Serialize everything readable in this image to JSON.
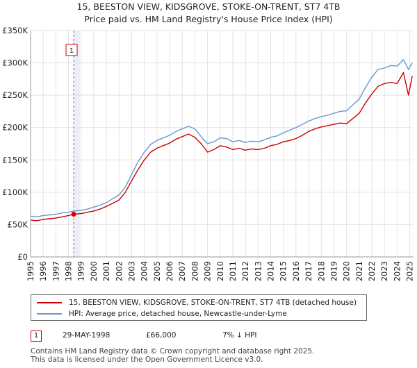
{
  "title_line1": "15, BEESTON VIEW, KIDSGROVE, STOKE-ON-TRENT, ST7 4TB",
  "title_line2": "Price paid vs. HM Land Registry's House Price Index (HPI)",
  "colors": {
    "property": "#cc0000",
    "hpi": "#6699cc",
    "highlight": "#dde4f2",
    "marker": "#cc0000"
  },
  "chart_data": {
    "type": "line",
    "title": "15, BEESTON VIEW, KIDSGROVE, STOKE-ON-TRENT, ST7 4TB",
    "subtitle": "Price paid vs. HM Land Registry's House Price Index (HPI)",
    "xlabel": "",
    "ylabel": "",
    "xlim": [
      1995,
      2025.3
    ],
    "ylim": [
      0,
      350000
    ],
    "yticks": [
      0,
      50000,
      100000,
      150000,
      200000,
      250000,
      300000,
      350000
    ],
    "ytick_labels": [
      "£0",
      "£50K",
      "£100K",
      "£150K",
      "£200K",
      "£250K",
      "£300K",
      "£350K"
    ],
    "xticks": [
      1995,
      1996,
      1997,
      1998,
      1999,
      2000,
      2001,
      2002,
      2003,
      2004,
      2005,
      2006,
      2007,
      2008,
      2009,
      2010,
      2011,
      2012,
      2013,
      2014,
      2015,
      2016,
      2017,
      2018,
      2019,
      2020,
      2021,
      2022,
      2023,
      2024,
      2025
    ],
    "xtick_labels": [
      "1995",
      "1996",
      "1997",
      "1998",
      "1999",
      "2000",
      "2001",
      "2002",
      "2003",
      "2004",
      "2005",
      "2006",
      "2007",
      "2008",
      "2009",
      "2010",
      "2011",
      "2012",
      "2013",
      "2014",
      "2015",
      "2016",
      "2017",
      "2018",
      "2019",
      "2020",
      "2021",
      "2022",
      "2023",
      "2024",
      "2025"
    ],
    "grid": true,
    "series": [
      {
        "name": "15, BEESTON VIEW, KIDSGROVE, STOKE-ON-TRENT, ST7 4TB (detached house)",
        "color": "#cc0000",
        "x": [
          1995.0,
          1995.5,
          1996.0,
          1996.5,
          1997.0,
          1997.5,
          1998.0,
          1998.41,
          1999.0,
          1999.5,
          2000.0,
          2000.5,
          2001.0,
          2001.5,
          2002.0,
          2002.5,
          2003.0,
          2003.5,
          2004.0,
          2004.5,
          2005.0,
          2005.5,
          2006.0,
          2006.5,
          2007.0,
          2007.5,
          2008.0,
          2008.5,
          2009.0,
          2009.5,
          2010.0,
          2010.5,
          2011.0,
          2011.5,
          2012.0,
          2012.5,
          2013.0,
          2013.5,
          2014.0,
          2014.5,
          2015.0,
          2015.5,
          2016.0,
          2016.5,
          2017.0,
          2017.5,
          2018.0,
          2018.5,
          2019.0,
          2019.5,
          2020.0,
          2020.5,
          2021.0,
          2021.5,
          2022.0,
          2022.5,
          2023.0,
          2023.5,
          2024.0,
          2024.5,
          2024.9,
          2025.2
        ],
        "values": [
          57000,
          56000,
          58000,
          59000,
          60000,
          62000,
          64000,
          66000,
          67000,
          69000,
          71000,
          74000,
          78000,
          83000,
          88000,
          100000,
          118000,
          135000,
          150000,
          162000,
          168000,
          172000,
          176000,
          182000,
          186000,
          190000,
          185000,
          175000,
          162000,
          166000,
          172000,
          170000,
          166000,
          168000,
          165000,
          167000,
          166000,
          168000,
          172000,
          174000,
          178000,
          180000,
          183000,
          188000,
          194000,
          198000,
          201000,
          203000,
          205000,
          207000,
          206000,
          214000,
          222000,
          238000,
          252000,
          264000,
          268000,
          270000,
          268000,
          285000,
          250000,
          280000
        ]
      },
      {
        "name": "HPI: Average price, detached house, Newcastle-under-Lyme",
        "color": "#6699cc",
        "x": [
          1995.0,
          1995.5,
          1996.0,
          1996.5,
          1997.0,
          1997.5,
          1998.0,
          1998.41,
          1999.0,
          1999.5,
          2000.0,
          2000.5,
          2001.0,
          2001.5,
          2002.0,
          2002.5,
          2003.0,
          2003.5,
          2004.0,
          2004.5,
          2005.0,
          2005.5,
          2006.0,
          2006.5,
          2007.0,
          2007.5,
          2008.0,
          2008.5,
          2009.0,
          2009.5,
          2010.0,
          2010.5,
          2011.0,
          2011.5,
          2012.0,
          2012.5,
          2013.0,
          2013.5,
          2014.0,
          2014.5,
          2015.0,
          2015.5,
          2016.0,
          2016.5,
          2017.0,
          2017.5,
          2018.0,
          2018.5,
          2019.0,
          2019.5,
          2020.0,
          2020.5,
          2021.0,
          2021.5,
          2022.0,
          2022.5,
          2023.0,
          2023.5,
          2024.0,
          2024.5,
          2024.9,
          2025.2
        ],
        "values": [
          63000,
          62000,
          64000,
          65000,
          66000,
          68000,
          69000,
          71000,
          72000,
          74000,
          77000,
          80000,
          84000,
          90000,
          96000,
          108000,
          128000,
          147000,
          162000,
          174000,
          180000,
          184000,
          188000,
          194000,
          198000,
          202000,
          198000,
          186000,
          175000,
          178000,
          184000,
          183000,
          178000,
          180000,
          177000,
          179000,
          178000,
          181000,
          185000,
          187000,
          192000,
          196000,
          200000,
          205000,
          210000,
          214000,
          217000,
          219000,
          222000,
          225000,
          226000,
          235000,
          244000,
          262000,
          278000,
          290000,
          292000,
          296000,
          295000,
          305000,
          290000,
          300000
        ]
      }
    ],
    "annotations": [
      {
        "label": "1",
        "x": 1998.41,
        "y": 66000
      }
    ]
  },
  "legend": {
    "property_label": "15, BEESTON VIEW, KIDSGROVE, STOKE-ON-TRENT, ST7 4TB (detached house)",
    "hpi_label": "HPI: Average price, detached house, Newcastle-under-Lyme"
  },
  "sale": {
    "badge": "1",
    "date": "29-MAY-1998",
    "price": "£66,000",
    "hpi_diff": "7% ↓ HPI"
  },
  "footer": {
    "line1": "Contains HM Land Registry data © Crown copyright and database right 2025.",
    "line2": "This data is licensed under the Open Government Licence v3.0."
  }
}
